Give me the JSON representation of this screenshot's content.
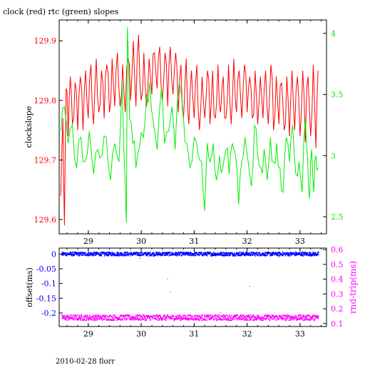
{
  "colors": {
    "clock": "#ff0000",
    "rtc": "#00ee00",
    "offset": "#0000ff",
    "rndtrip": "#ff00ff",
    "axis": "#000000",
    "background": "#ffffff"
  },
  "chart_data": [
    {
      "type": "line",
      "title": "clock (red) rtc (green) slopes",
      "ylabel": "clockslope",
      "y2label": "",
      "xlim": [
        28.45,
        33.5
      ],
      "ylim": [
        129.576,
        129.935
      ],
      "y2lim": [
        2.36,
        4.11
      ],
      "xticks": [
        29,
        30,
        31,
        32,
        33
      ],
      "xtick_labels": [
        "29",
        "30",
        "31",
        "32",
        "33"
      ],
      "yticks": [
        129.6,
        129.7,
        129.8,
        129.9
      ],
      "ytick_labels": [
        "129.6",
        "129.7",
        "129.8",
        "129.9"
      ],
      "y2ticks": [
        2.5,
        3,
        3.5,
        4
      ],
      "y2tick_labels": [
        "2.5",
        "3",
        "3.5",
        "4"
      ],
      "series": [
        {
          "axis": "left",
          "color": "#ff0000",
          "x": [
            28.48,
            28.52,
            28.55,
            28.58,
            28.62,
            28.66,
            28.7,
            28.75,
            28.8,
            28.85,
            28.9,
            28.95,
            29.0,
            29.05,
            29.1,
            29.15,
            29.2,
            29.25,
            29.3,
            29.35,
            29.4,
            29.45,
            29.5,
            29.55,
            29.6,
            29.65,
            29.7,
            29.75,
            29.8,
            29.85,
            29.9,
            29.95,
            30.0,
            30.05,
            30.1,
            30.15,
            30.2,
            30.25,
            30.3,
            30.35,
            30.4,
            30.45,
            30.5,
            30.55,
            30.6,
            30.65,
            30.7,
            30.75,
            30.8,
            30.85,
            30.9,
            30.95,
            31.0,
            31.05,
            31.1,
            31.15,
            31.2,
            31.25,
            31.3,
            31.35,
            31.4,
            31.45,
            31.5,
            31.55,
            31.6,
            31.65,
            31.7,
            31.75,
            31.8,
            31.85,
            31.9,
            31.95,
            32.0,
            32.05,
            32.1,
            32.15,
            32.2,
            32.25,
            32.3,
            32.35,
            32.4,
            32.45,
            32.5,
            32.55,
            32.6,
            32.65,
            32.7,
            32.75,
            32.8,
            32.85,
            32.9,
            32.95,
            33.0,
            33.05,
            33.1,
            33.15,
            33.2,
            33.25,
            33.3,
            33.34
          ],
          "y": [
            129.64,
            129.77,
            129.59,
            129.82,
            129.74,
            129.84,
            129.76,
            129.83,
            129.75,
            129.84,
            129.75,
            129.85,
            129.77,
            129.86,
            129.76,
            129.87,
            129.78,
            129.85,
            129.77,
            129.86,
            129.78,
            129.87,
            129.79,
            129.88,
            129.79,
            129.86,
            129.78,
            129.87,
            129.8,
            129.9,
            129.79,
            129.91,
            129.8,
            129.88,
            129.79,
            129.87,
            129.81,
            129.88,
            129.82,
            129.89,
            129.8,
            129.88,
            129.79,
            129.89,
            129.81,
            129.88,
            129.78,
            129.86,
            129.77,
            129.87,
            129.76,
            129.85,
            129.77,
            129.86,
            129.75,
            129.84,
            129.77,
            129.85,
            129.76,
            129.85,
            129.77,
            129.86,
            129.78,
            129.84,
            129.77,
            129.86,
            129.76,
            129.87,
            129.78,
            129.85,
            129.77,
            129.86,
            129.78,
            129.84,
            129.77,
            129.85,
            129.76,
            129.84,
            129.77,
            129.85,
            129.76,
            129.86,
            129.75,
            129.84,
            129.76,
            129.83,
            129.75,
            129.84,
            129.74,
            129.85,
            129.75,
            129.84,
            129.74,
            129.85,
            129.73,
            129.84,
            129.74,
            129.86,
            129.72,
            129.85
          ]
        },
        {
          "axis": "right",
          "color": "#00ee00",
          "x": [
            28.48,
            28.55,
            28.62,
            28.7,
            28.78,
            28.86,
            28.94,
            29.02,
            29.1,
            29.18,
            29.26,
            29.34,
            29.42,
            29.5,
            29.58,
            29.64,
            29.7,
            29.72,
            29.74,
            29.78,
            29.84,
            29.9,
            29.96,
            30.04,
            30.1,
            30.16,
            30.22,
            30.3,
            30.38,
            30.44,
            30.52,
            30.58,
            30.64,
            30.72,
            30.8,
            30.86,
            30.92,
            31.0,
            31.08,
            31.14,
            31.2,
            31.25,
            31.3,
            31.36,
            31.42,
            31.48,
            31.54,
            31.6,
            31.66,
            31.72,
            31.78,
            31.84,
            31.9,
            31.96,
            32.02,
            32.08,
            32.14,
            32.2,
            32.26,
            32.32,
            32.38,
            32.44,
            32.5,
            32.56,
            32.62,
            32.68,
            32.74,
            32.8,
            32.86,
            32.92,
            32.98,
            33.04,
            33.1,
            33.14,
            33.18,
            33.22,
            33.26,
            33.3,
            33.34
          ],
          "y": [
            3.2,
            3.4,
            3.1,
            3.25,
            2.9,
            3.15,
            2.95,
            3.2,
            2.85,
            3.05,
            3.0,
            3.15,
            2.8,
            3.1,
            2.95,
            3.6,
            2.75,
            2.45,
            4.05,
            3.3,
            3.1,
            2.9,
            3.05,
            3.15,
            3.5,
            3.6,
            3.3,
            3.05,
            3.55,
            3.1,
            3.2,
            3.4,
            3.05,
            3.6,
            3.3,
            3.1,
            2.9,
            3.15,
            3.0,
            2.95,
            2.55,
            3.1,
            2.95,
            3.1,
            2.8,
            3.0,
            2.9,
            3.05,
            2.85,
            3.1,
            3.0,
            2.6,
            2.95,
            3.15,
            2.95,
            2.75,
            3.25,
            3.0,
            2.9,
            3.05,
            2.8,
            3.15,
            2.95,
            3.1,
            2.9,
            2.7,
            3.15,
            2.95,
            3.25,
            2.85,
            2.95,
            2.7,
            3.3,
            3.0,
            2.65,
            3.05,
            2.7,
            3.0,
            2.9
          ]
        }
      ]
    },
    {
      "type": "scatter",
      "title": "",
      "ylabel": "offset(ms)",
      "y2label": "rnd-trip(ms)",
      "xlim": [
        28.45,
        33.5
      ],
      "ylim": [
        -0.246,
        0.02
      ],
      "y2lim": [
        0.08,
        0.61
      ],
      "xticks": [
        29,
        30,
        31,
        32,
        33
      ],
      "xtick_labels": [
        "29",
        "30",
        "31",
        "32",
        "33"
      ],
      "yticks": [
        0,
        -0.05,
        -0.1,
        -0.15,
        -0.2
      ],
      "ytick_labels": [
        "0",
        "-0.05",
        "-0.1",
        "-0.15",
        "-0.2"
      ],
      "y2ticks": [
        0.1,
        0.2,
        0.3,
        0.4,
        0.5,
        0.6
      ],
      "y2tick_labels": [
        "0.1",
        "0.2",
        "0.3",
        "0.4",
        "0.5",
        "0.6"
      ],
      "series": [
        {
          "axis": "left",
          "color": "#0000ff",
          "x_range": [
            28.5,
            33.35
          ],
          "y_level": 0.0,
          "y_spread": 0.006,
          "outliers": [
            [
              29.3,
              -0.01
            ],
            [
              29.97,
              -0.015
            ],
            [
              30.5,
              -0.085
            ],
            [
              30.55,
              -0.13
            ],
            [
              31.5,
              -0.2
            ],
            [
              32.05,
              -0.11
            ],
            [
              32.6,
              -0.01
            ]
          ]
        },
        {
          "axis": "right",
          "color": "#ff00ff",
          "x_range": [
            28.5,
            33.35
          ],
          "y_level": 0.14,
          "y_spread": 0.018
        }
      ]
    }
  ],
  "footer": {
    "label": "2010-02-28 florr"
  }
}
